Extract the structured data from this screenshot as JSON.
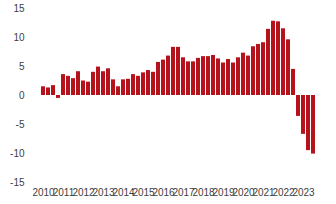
{
  "chart_data": {
    "type": "bar",
    "categories": [
      "2010",
      null,
      null,
      null,
      "2011",
      null,
      null,
      null,
      "2012",
      null,
      null,
      null,
      "2013",
      null,
      null,
      null,
      "2014",
      null,
      null,
      null,
      "2015",
      null,
      null,
      null,
      "2016",
      null,
      null,
      null,
      "2017",
      null,
      null,
      null,
      "2018",
      null,
      null,
      null,
      "2019",
      null,
      null,
      null,
      "2020",
      null,
      null,
      null,
      "2021",
      null,
      null,
      null,
      "2022",
      null,
      null,
      null,
      "2023",
      null,
      null
    ],
    "values": [
      1.5,
      1.3,
      1.7,
      -0.5,
      3.6,
      3.3,
      2.9,
      4.1,
      2.5,
      2.3,
      4.0,
      4.9,
      4.1,
      4.6,
      2.7,
      1.5,
      2.7,
      2.8,
      3.6,
      3.3,
      3.9,
      4.3,
      4.0,
      5.7,
      6.1,
      6.8,
      8.3,
      8.3,
      6.5,
      5.8,
      5.8,
      6.4,
      6.7,
      6.7,
      6.9,
      6.3,
      5.6,
      6.2,
      5.6,
      6.5,
      7.3,
      6.8,
      8.4,
      8.8,
      9.1,
      11.4,
      12.8,
      12.7,
      11.5,
      9.6,
      4.5,
      -3.6,
      -6.7,
      -9.5,
      -10.1
    ],
    "color": "#b5121b",
    "ylim": [
      -15,
      15
    ],
    "yticks": [
      -15,
      -10,
      -5,
      0,
      5,
      10,
      15
    ],
    "grid": false
  }
}
